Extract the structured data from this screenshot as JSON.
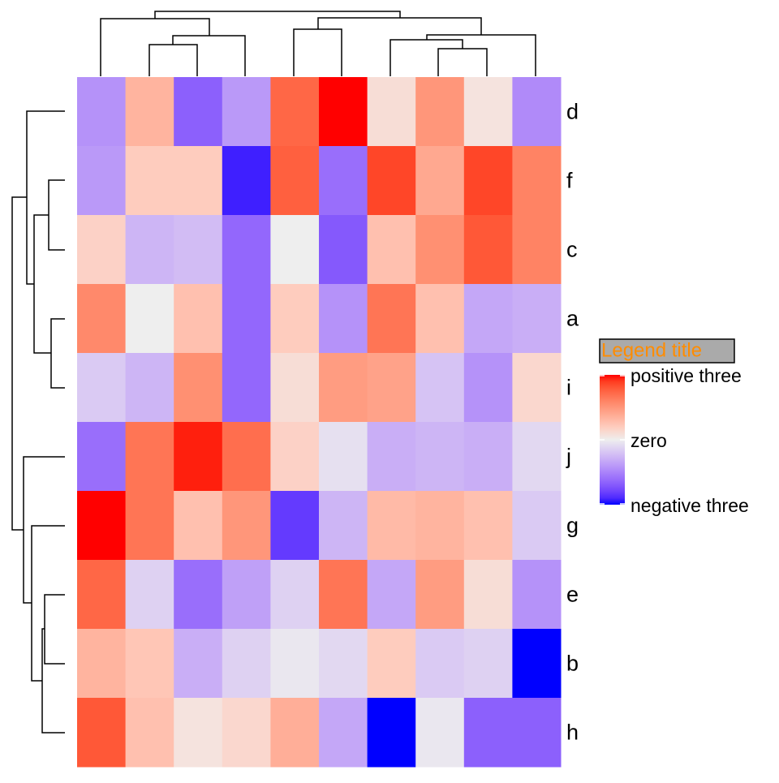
{
  "chart_data": {
    "type": "heatmap",
    "rows": [
      "d",
      "f",
      "c",
      "a",
      "i",
      "j",
      "g",
      "e",
      "b",
      "h"
    ],
    "values": [
      [
        -1.3,
        1.0,
        -2.0,
        -1.2,
        2.2,
        3.0,
        0.3,
        1.5,
        0.2,
        -1.4
      ],
      [
        -1.2,
        0.6,
        0.6,
        -2.8,
        2.3,
        -1.8,
        2.6,
        1.2,
        2.6,
        1.8
      ],
      [
        0.5,
        -0.8,
        -0.7,
        -1.9,
        0.0,
        -2.1,
        0.8,
        1.6,
        2.4,
        1.8
      ],
      [
        1.7,
        0.0,
        0.8,
        -1.9,
        0.6,
        -1.3,
        2.0,
        0.8,
        -1.0,
        -0.9
      ],
      [
        -0.5,
        -0.8,
        1.6,
        -1.9,
        0.3,
        1.4,
        1.3,
        -0.6,
        -1.3,
        0.4
      ],
      [
        -1.8,
        2.0,
        2.9,
        2.1,
        0.5,
        -0.2,
        -0.9,
        -0.8,
        -0.9,
        -0.3
      ],
      [
        3.0,
        2.0,
        0.8,
        1.5,
        -2.5,
        -0.8,
        0.9,
        1.0,
        0.8,
        -0.5
      ],
      [
        2.2,
        -0.4,
        -1.8,
        -1.1,
        -0.4,
        2.0,
        -1.0,
        1.4,
        0.3,
        -1.3
      ],
      [
        1.0,
        0.7,
        -0.9,
        -0.4,
        -0.1,
        -0.3,
        0.6,
        -0.5,
        -0.4,
        -3.0
      ],
      [
        2.4,
        0.8,
        0.2,
        0.4,
        1.1,
        -1.0,
        -3.0,
        -0.1,
        -2.0,
        -2.0
      ]
    ],
    "legend_title": "Legend title",
    "legend_ticks": [
      {
        "value": 3,
        "label": "positive three"
      },
      {
        "value": 0,
        "label": "zero"
      },
      {
        "value": -3,
        "label": "negative three"
      }
    ],
    "colors": [
      "#ff0000",
      "#eeeeee",
      "#0000ff"
    ],
    "legend_title_color": "#ff8c00",
    "legend_title_fill": "#aaaaaa"
  }
}
